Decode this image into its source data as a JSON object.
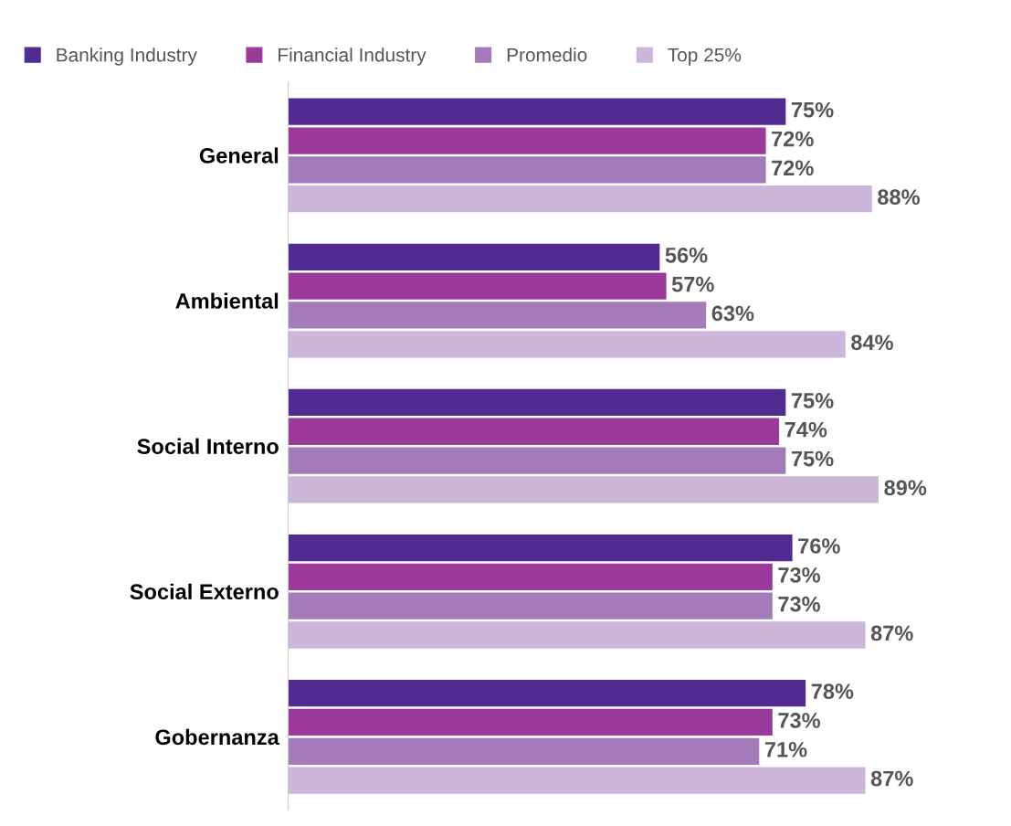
{
  "chart_data": {
    "type": "bar",
    "orientation": "horizontal",
    "categories": [
      "General",
      "Ambiental",
      "Social Interno",
      "Social Externo",
      "Gobernanza"
    ],
    "series": [
      {
        "name": "Banking Industry",
        "color": "#512b8f",
        "values": [
          75,
          56,
          75,
          76,
          78
        ],
        "value_labels": [
          "75%",
          "56%",
          "75%",
          "76%",
          "78%"
        ]
      },
      {
        "name": "Financial Industry",
        "color": "#9c3a9c",
        "values": [
          72,
          57,
          74,
          73,
          73
        ],
        "value_labels": [
          "72%",
          "57%",
          "74%",
          "73%",
          "73%"
        ]
      },
      {
        "name": "Promedio",
        "color": "#a27bb8",
        "values": [
          72,
          63,
          75,
          73,
          71
        ],
        "value_labels": [
          "72%",
          "63%",
          "75%",
          "73%",
          "71%"
        ]
      },
      {
        "name": "Top 25%",
        "color": "#cdb6d9",
        "values": [
          88,
          84,
          89,
          87,
          87
        ],
        "value_labels": [
          "88%",
          "84%",
          "89%",
          "87%",
          "87%"
        ]
      }
    ],
    "legend": "top",
    "grid": false,
    "tick_labels": "y"
  }
}
